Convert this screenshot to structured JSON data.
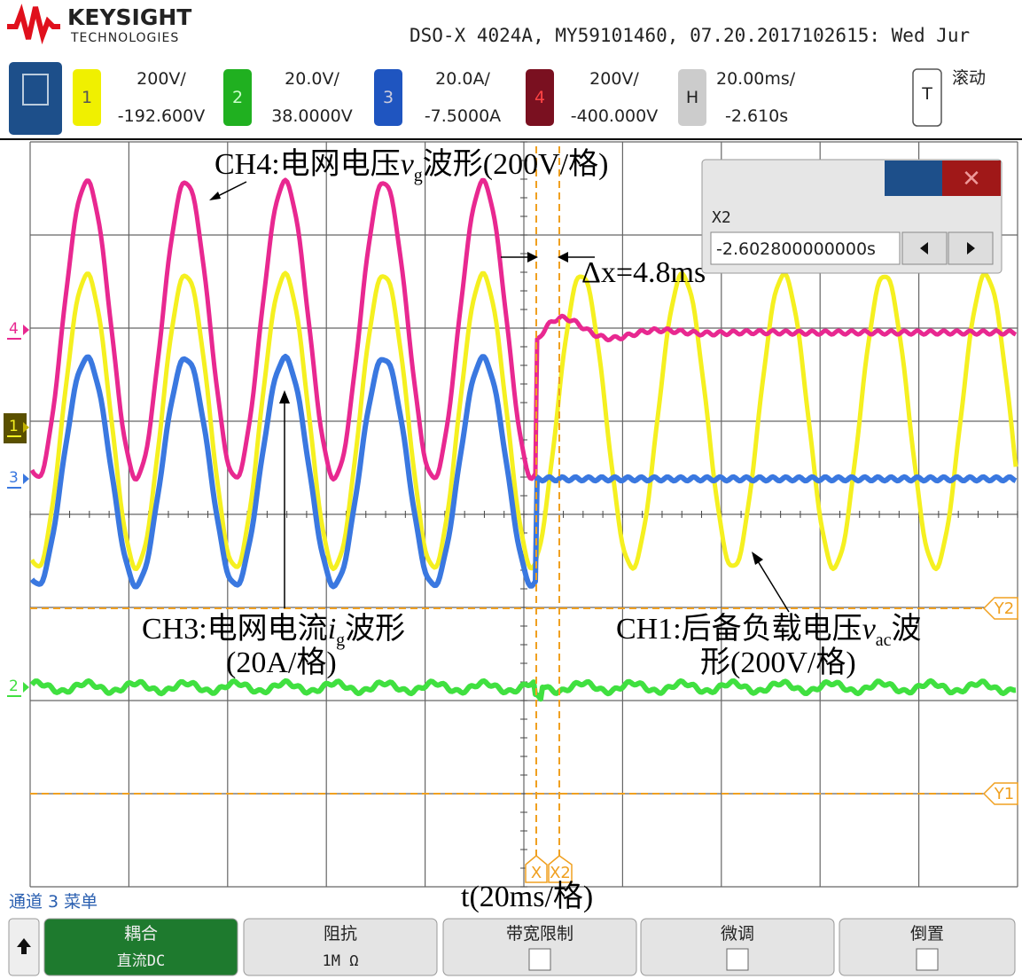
{
  "header": {
    "brand": "KEYSIGHT",
    "brand_sub": "TECHNOLOGIES",
    "device": "DSO-X 4024A, MY59101460, 07.20.2017102615: Wed Jur"
  },
  "channels": [
    {
      "label": "1",
      "scale": "200V/",
      "offset": "-192.600V"
    },
    {
      "label": "2",
      "scale": "20.0V/",
      "offset": "38.0000V"
    },
    {
      "label": "3",
      "scale": "20.0A/",
      "offset": "-7.5000A"
    },
    {
      "label": "4",
      "scale": "200V/",
      "offset": "-400.000V"
    }
  ],
  "horizontal": {
    "label": "H",
    "scale": "20.00ms/",
    "offset": "-2.610s"
  },
  "trigger": {
    "label": "T",
    "mode": "滚动"
  },
  "plot": {
    "markers": [
      "4",
      "1",
      "3",
      "2"
    ],
    "cursors": [
      "Y2",
      "Y1",
      "X",
      "X2"
    ]
  },
  "annotations": {
    "ch4": [
      "CH4:电网电压",
      "v",
      "g",
      "波形(200V/格)"
    ],
    "dx": "Δx=4.8ms",
    "ch3": [
      "CH3:电网电流",
      "i",
      "g",
      "波形"
    ],
    "ch3_unit": "(20A/格)",
    "ch1": [
      "CH1:后备负载电压",
      "v",
      "ac",
      "波"
    ],
    "ch1_unit": "形(200V/格)",
    "time": "t(20ms/格)"
  },
  "cursor_dialog": {
    "title": "X2",
    "value": "-2.602800000000s"
  },
  "menu": {
    "title": "通道 3 菜单",
    "softkeys": [
      {
        "label": "耦合",
        "value": "直流DC"
      },
      {
        "label": "阻抗",
        "value": "1M Ω"
      },
      {
        "label": "带宽限制"
      },
      {
        "label": "微调"
      },
      {
        "label": "倒置"
      }
    ]
  }
}
